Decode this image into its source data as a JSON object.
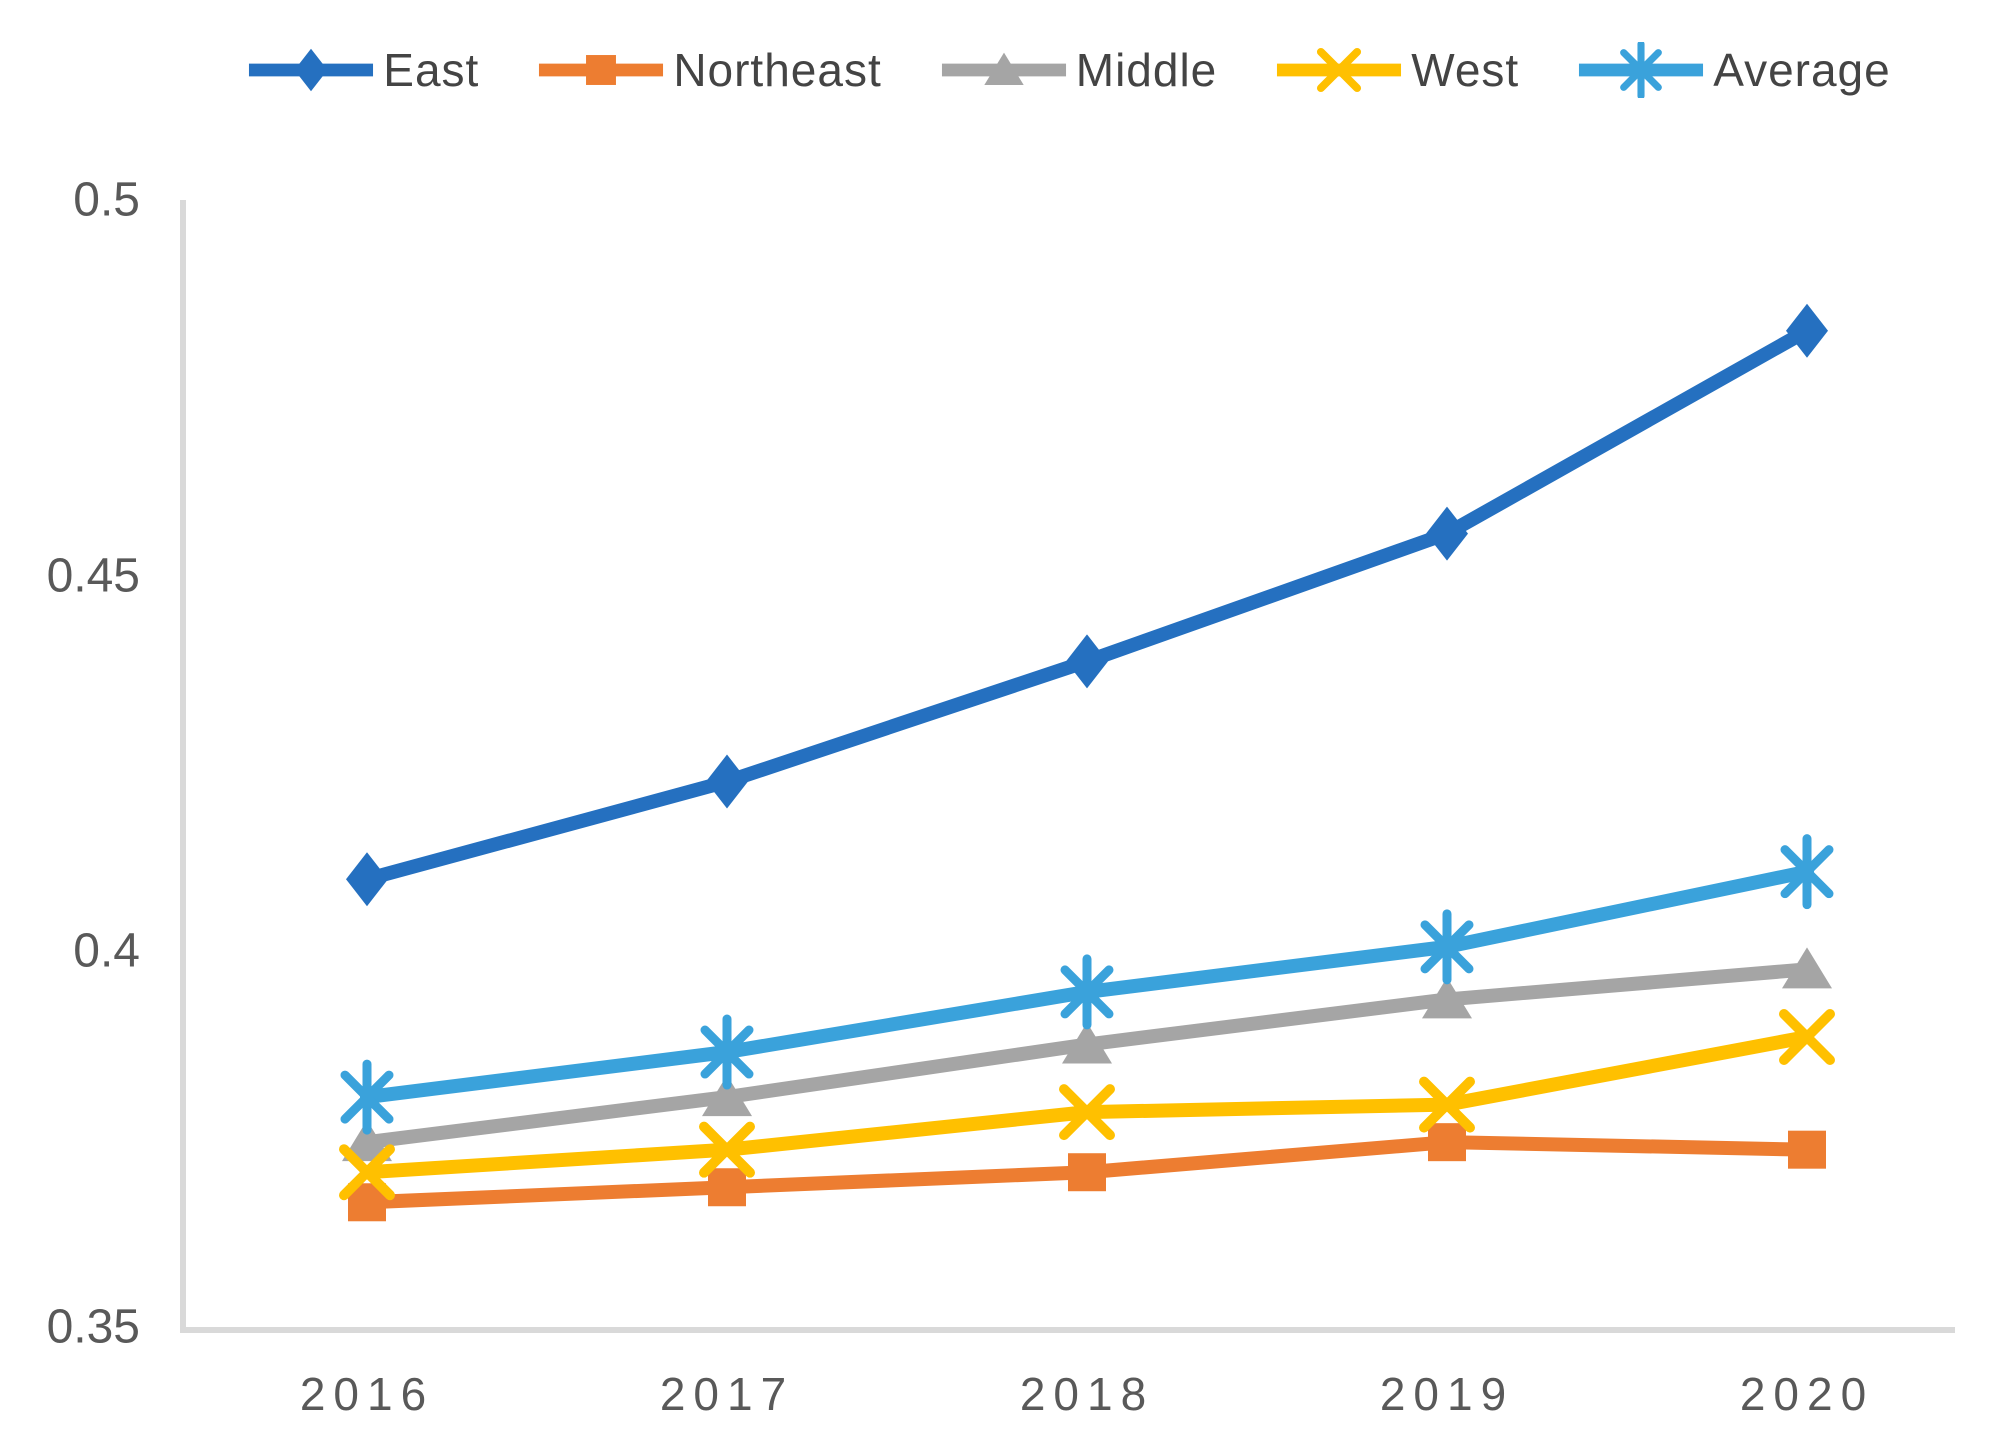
{
  "chart_data": {
    "type": "line",
    "title": "",
    "xlabel": "",
    "ylabel": "",
    "categories": [
      "2016",
      "2017",
      "2018",
      "2019",
      "2020"
    ],
    "series": [
      {
        "name": "East",
        "color": "#2570C0",
        "marker": "diamond",
        "values": [
          0.41,
          0.423,
          0.439,
          0.456,
          0.483
        ]
      },
      {
        "name": "Northeast",
        "color": "#ED7D31",
        "marker": "square",
        "values": [
          0.367,
          0.369,
          0.371,
          0.375,
          0.374
        ]
      },
      {
        "name": "Middle",
        "color": "#A5A5A5",
        "marker": "triangle",
        "values": [
          0.375,
          0.381,
          0.388,
          0.394,
          0.398
        ]
      },
      {
        "name": "West",
        "color": "#FFC000",
        "marker": "x",
        "values": [
          0.371,
          0.374,
          0.379,
          0.38,
          0.389
        ]
      },
      {
        "name": "Average",
        "color": "#3AA2DB",
        "marker": "asterisk",
        "values": [
          0.381,
          0.387,
          0.395,
          0.401,
          0.411
        ]
      }
    ],
    "y_ticks": [
      0.5,
      0.45,
      0.4,
      0.35
    ],
    "y_tick_labels": [
      "0.5",
      "0.45",
      "0.4",
      "0.35"
    ],
    "ylim": [
      0.35,
      0.5
    ],
    "grid": false,
    "legend_position": "top",
    "axis_color": "#D9D9D9",
    "tick_color": "#595959"
  }
}
